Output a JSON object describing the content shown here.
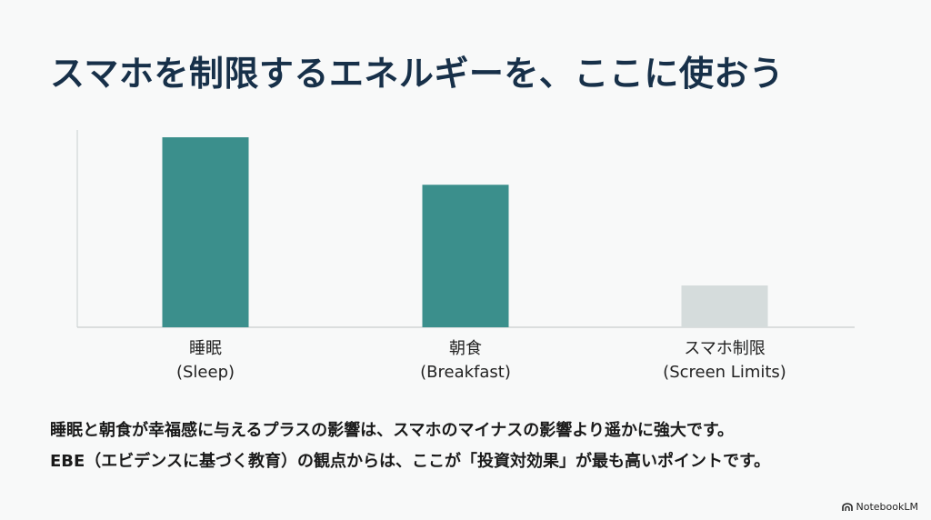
{
  "slide": {
    "title": "スマホを制限するエネルギーを、ここに使おう",
    "body_lines": [
      "睡眠と朝食が幸福感に与えるプラスの影響は、スマホのマイナスの影響より遥かに強大です。",
      "EBE（エビデンスに基づく教育）の観点からは、ここが「投資対効果」が最も高いポイントです。"
    ],
    "brand": "NotebookLM",
    "brand_icon": "notebooklm-logo-icon"
  },
  "chart_data": {
    "type": "bar",
    "categories": [
      [
        "睡眠",
        "(Sleep)"
      ],
      [
        "朝食",
        "(Breakfast)"
      ],
      [
        "スマホ制限",
        "(Screen Limits)"
      ]
    ],
    "values": [
      100,
      75,
      22
    ],
    "ylim": [
      0,
      100
    ],
    "colors": [
      "#3b8f8c",
      "#3b8f8c",
      "#d5dcdc"
    ],
    "axis_color": "#c9cfcf",
    "grid": false,
    "value_labels": false,
    "title": "",
    "xlabel": "",
    "ylabel": ""
  }
}
